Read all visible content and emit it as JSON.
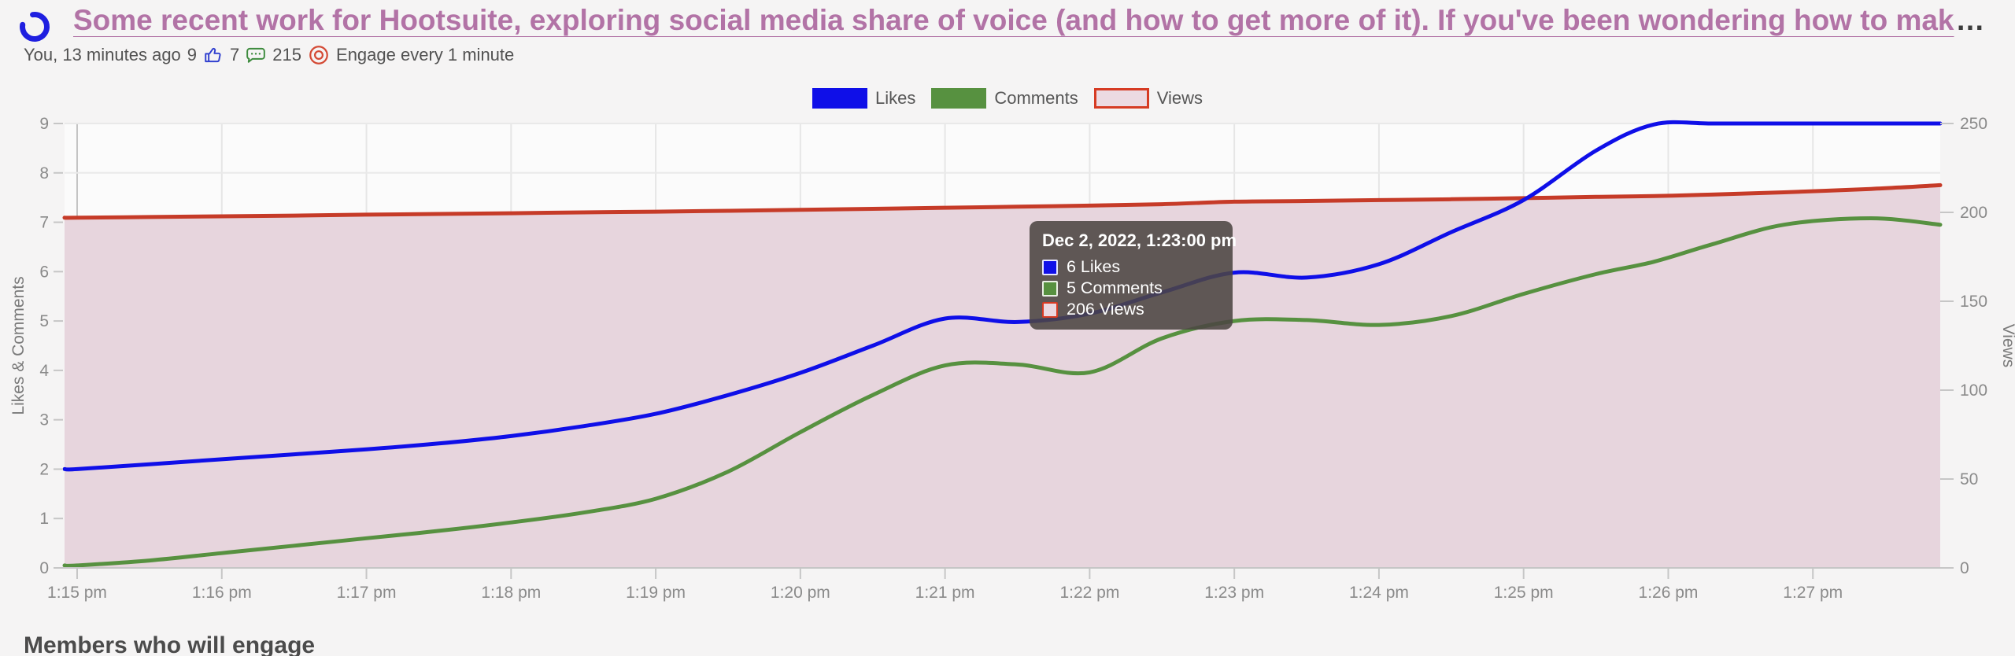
{
  "header": {
    "title": "Some recent work for Hootsuite, exploring social media share of voice (and how to get more of it). If you've been wondering how to mak",
    "truncation_ellipsis": "…",
    "byline": {
      "author_and_time": "You, 13 minutes ago",
      "likes_count": "9",
      "comments_count": "7",
      "views_count": "215",
      "engage_text": "Engage every 1 minute"
    }
  },
  "legend": {
    "items": [
      {
        "label": "Likes",
        "swatch_bg": "#0f0fe8",
        "swatch_border": "#0f0fe8"
      },
      {
        "label": "Comments",
        "swatch_bg": "#579140",
        "swatch_border": "#579140"
      },
      {
        "label": "Views",
        "swatch_bg": "#ecdae2",
        "swatch_border": "#d63b23"
      }
    ]
  },
  "tooltip": {
    "title": "Dec 2, 2022, 1:23:00 pm",
    "rows": [
      {
        "text": "6 Likes",
        "swatch_bg": "#0f0fe8",
        "swatch_border": "#e6e6ff"
      },
      {
        "text": "5 Comments",
        "swatch_bg": "#579140",
        "swatch_border": "#eaf0e5"
      },
      {
        "text": "206 Views",
        "swatch_bg": "#ead9e0",
        "swatch_border": "#d63b23"
      }
    ]
  },
  "chart_data": {
    "type": "area",
    "title": "",
    "x_tick_labels": [
      "1:15 pm",
      "1:16 pm",
      "1:17 pm",
      "1:18 pm",
      "1:19 pm",
      "1:20 pm",
      "1:21 pm",
      "1:22 pm",
      "1:23 pm",
      "1:24 pm",
      "1:25 pm",
      "1:26 pm",
      "1:27 pm"
    ],
    "x_minutes": [
      -0.09,
      0,
      0.5,
      1,
      1.5,
      2,
      2.5,
      3,
      3.5,
      4,
      4.5,
      5,
      5.5,
      6,
      6.5,
      7,
      7.5,
      8,
      8.5,
      9,
      9.5,
      10,
      10.5,
      10.9,
      11.3,
      11.8,
      12.4,
      12.9
    ],
    "y_left": {
      "title": "Likes & Comments",
      "ticks": [
        0,
        1,
        2,
        3,
        4,
        5,
        6,
        7,
        8,
        9
      ],
      "range": [
        0,
        9
      ]
    },
    "y_right": {
      "title": "Views",
      "ticks": [
        0,
        50,
        100,
        150,
        200,
        250
      ],
      "range": [
        0,
        250
      ]
    },
    "grid": true,
    "legend_position": "top",
    "series": [
      {
        "name": "Likes",
        "axis": "left",
        "color": "#0f0fe8",
        "values": [
          2.0,
          2.0,
          2.1,
          2.2,
          2.3,
          2.4,
          2.52,
          2.67,
          2.87,
          3.12,
          3.5,
          3.95,
          4.5,
          5.05,
          4.98,
          5.15,
          5.58,
          5.98,
          5.88,
          6.15,
          6.8,
          7.45,
          8.45,
          8.98,
          9.0,
          9.0,
          9.0,
          9.0
        ]
      },
      {
        "name": "Comments",
        "axis": "left",
        "color": "#579140",
        "values": [
          0.05,
          0.05,
          0.15,
          0.3,
          0.45,
          0.6,
          0.75,
          0.92,
          1.12,
          1.4,
          1.95,
          2.75,
          3.5,
          4.1,
          4.12,
          3.96,
          4.65,
          5.0,
          5.02,
          4.92,
          5.1,
          5.55,
          5.95,
          6.2,
          6.55,
          6.95,
          7.08,
          6.95
        ]
      },
      {
        "name": "Views",
        "axis": "right",
        "color": "#c63b28",
        "fill": "#e7d5dd",
        "values": [
          197,
          197,
          197.4,
          197.8,
          198.2,
          198.7,
          199.1,
          199.5,
          200,
          200.4,
          200.9,
          201.4,
          202,
          202.6,
          203.2,
          203.8,
          204.6,
          206,
          206.4,
          206.9,
          207.4,
          208,
          208.7,
          209.2,
          210,
          211.3,
          213.2,
          215.3
        ]
      }
    ],
    "hover_point": {
      "time": "Dec 2, 2022, 1:23:00 pm",
      "likes": 6,
      "comments": 5,
      "views": 206
    }
  },
  "footer": {
    "heading": "Members who will engage"
  }
}
